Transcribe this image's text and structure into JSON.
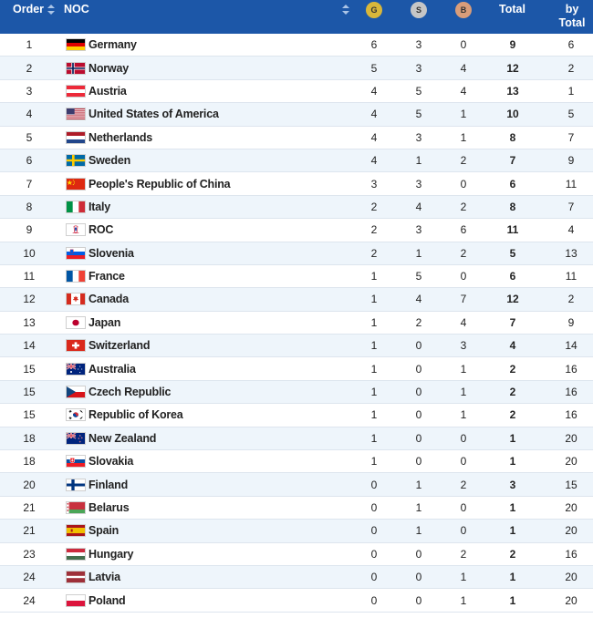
{
  "header": {
    "order": "Order",
    "noc": "NOC",
    "gold": "G",
    "silver": "S",
    "bronze": "B",
    "total": "Total",
    "by_total_line1": "by",
    "by_total_line2": "Total"
  },
  "colors": {
    "header_bg": "#1c57a8",
    "gold": "#d9b73a",
    "silver": "#c6c6c6",
    "bronze": "#d99d7a",
    "row_alt": "#eef5fb"
  },
  "rows": [
    {
      "order": "1",
      "noc": "Germany",
      "flag": "germany-flag-icon",
      "g": "6",
      "s": "3",
      "b": "0",
      "total": "9",
      "by_total": "6"
    },
    {
      "order": "2",
      "noc": "Norway",
      "flag": "norway-flag-icon",
      "g": "5",
      "s": "3",
      "b": "4",
      "total": "12",
      "by_total": "2"
    },
    {
      "order": "3",
      "noc": "Austria",
      "flag": "austria-flag-icon",
      "g": "4",
      "s": "5",
      "b": "4",
      "total": "13",
      "by_total": "1"
    },
    {
      "order": "4",
      "noc": "United States of America",
      "flag": "usa-flag-icon",
      "g": "4",
      "s": "5",
      "b": "1",
      "total": "10",
      "by_total": "5"
    },
    {
      "order": "5",
      "noc": "Netherlands",
      "flag": "netherlands-flag-icon",
      "g": "4",
      "s": "3",
      "b": "1",
      "total": "8",
      "by_total": "7"
    },
    {
      "order": "6",
      "noc": "Sweden",
      "flag": "sweden-flag-icon",
      "g": "4",
      "s": "1",
      "b": "2",
      "total": "7",
      "by_total": "9"
    },
    {
      "order": "7",
      "noc": "People's Republic of China",
      "flag": "china-flag-icon",
      "g": "3",
      "s": "3",
      "b": "0",
      "total": "6",
      "by_total": "11"
    },
    {
      "order": "8",
      "noc": "Italy",
      "flag": "italy-flag-icon",
      "g": "2",
      "s": "4",
      "b": "2",
      "total": "8",
      "by_total": "7"
    },
    {
      "order": "9",
      "noc": "ROC",
      "flag": "roc-flag-icon",
      "g": "2",
      "s": "3",
      "b": "6",
      "total": "11",
      "by_total": "4"
    },
    {
      "order": "10",
      "noc": "Slovenia",
      "flag": "slovenia-flag-icon",
      "g": "2",
      "s": "1",
      "b": "2",
      "total": "5",
      "by_total": "13"
    },
    {
      "order": "11",
      "noc": "France",
      "flag": "france-flag-icon",
      "g": "1",
      "s": "5",
      "b": "0",
      "total": "6",
      "by_total": "11"
    },
    {
      "order": "12",
      "noc": "Canada",
      "flag": "canada-flag-icon",
      "g": "1",
      "s": "4",
      "b": "7",
      "total": "12",
      "by_total": "2"
    },
    {
      "order": "13",
      "noc": "Japan",
      "flag": "japan-flag-icon",
      "g": "1",
      "s": "2",
      "b": "4",
      "total": "7",
      "by_total": "9"
    },
    {
      "order": "14",
      "noc": "Switzerland",
      "flag": "switzerland-flag-icon",
      "g": "1",
      "s": "0",
      "b": "3",
      "total": "4",
      "by_total": "14"
    },
    {
      "order": "15",
      "noc": "Australia",
      "flag": "australia-flag-icon",
      "g": "1",
      "s": "0",
      "b": "1",
      "total": "2",
      "by_total": "16"
    },
    {
      "order": "15",
      "noc": "Czech Republic",
      "flag": "czech-flag-icon",
      "g": "1",
      "s": "0",
      "b": "1",
      "total": "2",
      "by_total": "16"
    },
    {
      "order": "15",
      "noc": "Republic of Korea",
      "flag": "korea-flag-icon",
      "g": "1",
      "s": "0",
      "b": "1",
      "total": "2",
      "by_total": "16"
    },
    {
      "order": "18",
      "noc": "New Zealand",
      "flag": "new-zealand-flag-icon",
      "g": "1",
      "s": "0",
      "b": "0",
      "total": "1",
      "by_total": "20"
    },
    {
      "order": "18",
      "noc": "Slovakia",
      "flag": "slovakia-flag-icon",
      "g": "1",
      "s": "0",
      "b": "0",
      "total": "1",
      "by_total": "20"
    },
    {
      "order": "20",
      "noc": "Finland",
      "flag": "finland-flag-icon",
      "g": "0",
      "s": "1",
      "b": "2",
      "total": "3",
      "by_total": "15"
    },
    {
      "order": "21",
      "noc": "Belarus",
      "flag": "belarus-flag-icon",
      "g": "0",
      "s": "1",
      "b": "0",
      "total": "1",
      "by_total": "20"
    },
    {
      "order": "21",
      "noc": "Spain",
      "flag": "spain-flag-icon",
      "g": "0",
      "s": "1",
      "b": "0",
      "total": "1",
      "by_total": "20"
    },
    {
      "order": "23",
      "noc": "Hungary",
      "flag": "hungary-flag-icon",
      "g": "0",
      "s": "0",
      "b": "2",
      "total": "2",
      "by_total": "16"
    },
    {
      "order": "24",
      "noc": "Latvia",
      "flag": "latvia-flag-icon",
      "g": "0",
      "s": "0",
      "b": "1",
      "total": "1",
      "by_total": "20"
    },
    {
      "order": "24",
      "noc": "Poland",
      "flag": "poland-flag-icon",
      "g": "0",
      "s": "0",
      "b": "1",
      "total": "1",
      "by_total": "20"
    }
  ]
}
